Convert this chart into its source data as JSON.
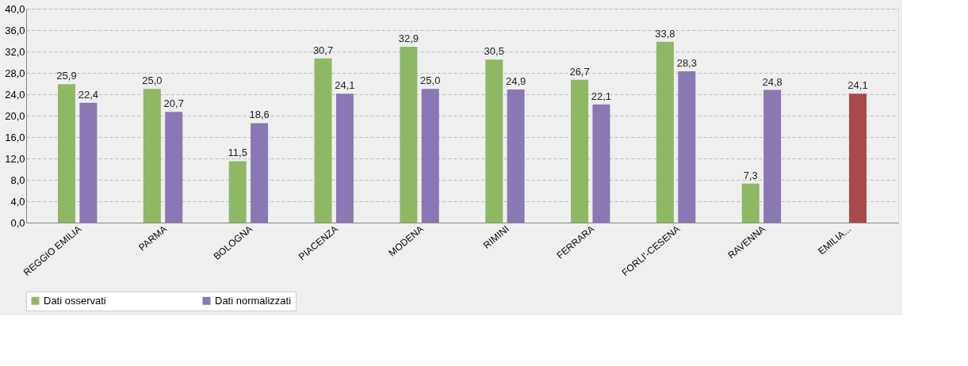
{
  "chart_data": {
    "type": "bar",
    "categories": [
      "REGGIO EMILIA",
      "PARMA",
      "BOLOGNA",
      "PIACENZA",
      "MODENA",
      "RIMINI",
      "FERRARA",
      "FORLI'-CESENA",
      "RAVENNA",
      "EMILIA..."
    ],
    "series": [
      {
        "name": "Dati osservati",
        "color": "#8fb865",
        "values": [
          25.9,
          25.0,
          11.5,
          30.7,
          32.9,
          30.5,
          26.7,
          33.8,
          7.3,
          null
        ],
        "value_labels": [
          "25,9",
          "25,0",
          "11,5",
          "30,7",
          "32,9",
          "30,5",
          "26,7",
          "33,8",
          "7,3",
          null
        ]
      },
      {
        "name": "Dati normalizzati",
        "color": "#8a78b4",
        "colors": [
          "#8a78b4",
          "#8a78b4",
          "#8a78b4",
          "#8a78b4",
          "#8a78b4",
          "#8a78b4",
          "#8a78b4",
          "#8a78b4",
          "#8a78b4",
          "#a84a4a"
        ],
        "values": [
          22.4,
          20.7,
          18.6,
          24.1,
          25.0,
          24.9,
          22.1,
          28.3,
          24.8,
          24.1
        ],
        "value_labels": [
          "22,4",
          "20,7",
          "18,6",
          "24,1",
          "25,0",
          "24,9",
          "22,1",
          "28,3",
          "24,8",
          "24,1"
        ]
      }
    ],
    "ylim": [
      0,
      40
    ],
    "yticks": [
      {
        "value": 0,
        "label": "0,0"
      },
      {
        "value": 4,
        "label": "4,0"
      },
      {
        "value": 8,
        "label": "8,0"
      },
      {
        "value": 12,
        "label": "12,0"
      },
      {
        "value": 16,
        "label": "16,0"
      },
      {
        "value": 20,
        "label": "20,0"
      },
      {
        "value": 24,
        "label": "24,0"
      },
      {
        "value": 28,
        "label": "28,0"
      },
      {
        "value": 32,
        "label": "32,0"
      },
      {
        "value": 36,
        "label": "36,0"
      },
      {
        "value": 40,
        "label": "40,0"
      }
    ],
    "grid": "y",
    "legend": "bottom"
  }
}
